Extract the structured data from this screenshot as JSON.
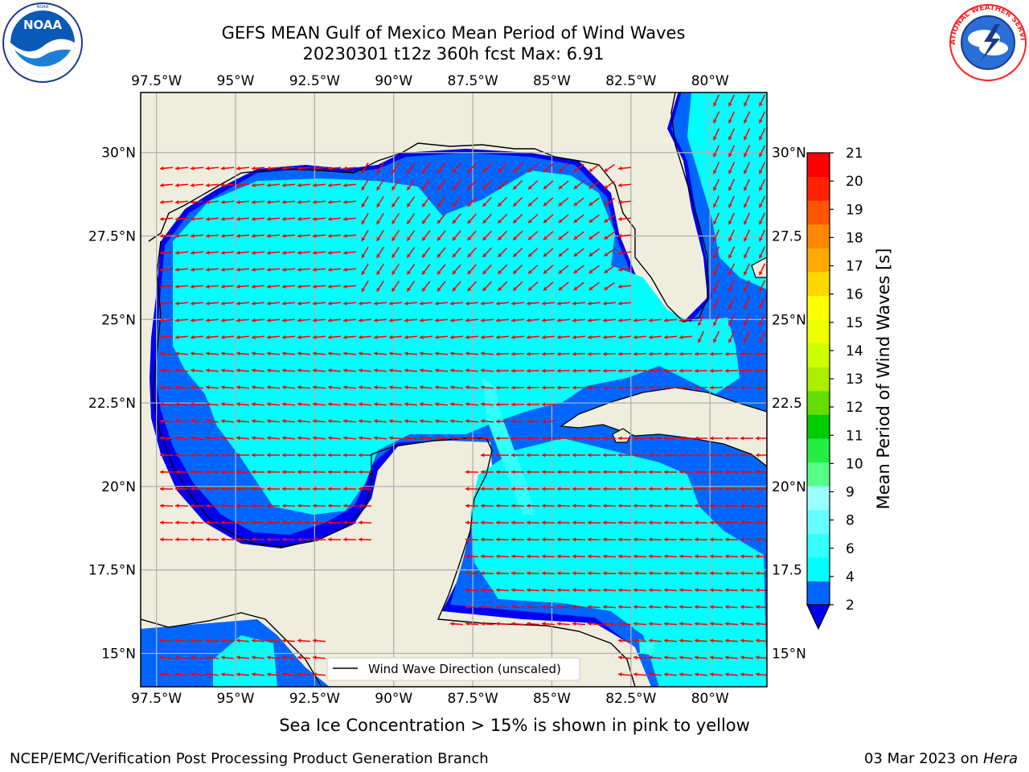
{
  "header": {
    "title_line1": "GEFS MEAN Gulf of Mexico Mean Period of Wind Waves",
    "title_line2": "20230301 t12z 360h fcst   Max: 6.91"
  },
  "logos": {
    "left": {
      "name": "noaa-logo",
      "text": "NOAA",
      "ring_text": "NATIONAL OCEANIC AND ATMOSPHERIC ADMINISTRATION · U.S. DEPARTMENT OF COMMERCE"
    },
    "right": {
      "name": "nws-logo",
      "ring_text": "NATIONAL WEATHER SERVICE"
    }
  },
  "map": {
    "lon_range": [
      -98.0,
      -78.2
    ],
    "lat_range": [
      14.0,
      31.8
    ],
    "lon_ticks": [
      "97.5°W",
      "95°W",
      "92.5°W",
      "90°W",
      "87.5°W",
      "85°W",
      "82.5°W",
      "80°W"
    ],
    "lon_values": [
      -97.5,
      -95,
      -92.5,
      -90,
      -87.5,
      -85,
      -82.5,
      -80
    ],
    "lat_ticks": [
      "30°N",
      "27.5°N",
      "25°N",
      "22.5°N",
      "20°N",
      "17.5°N",
      "15°N"
    ],
    "lat_values": [
      30,
      27.5,
      25,
      22.5,
      20,
      17.5,
      15
    ],
    "right_lat_ticks": [
      "30°N",
      "27.5",
      "25°N",
      "22.5",
      "20°N",
      "17.5",
      "15°N"
    ],
    "land_color": "#efedde",
    "grid_color": "#b0b0b0",
    "arrow_color": "#ff0000",
    "legend_label": "Wind Wave Direction (unscaled)"
  },
  "colorbar": {
    "label": "Mean Period of Wind Waves [s]",
    "ticks": [
      "2",
      "4",
      "6",
      "8",
      "9",
      "10",
      "11",
      "12",
      "13",
      "14",
      "15",
      "16",
      "17",
      "18",
      "19",
      "20",
      "21"
    ],
    "colors": [
      "#0066ff",
      "#00ffff",
      "#33ffff",
      "#66ffff",
      "#99ffff",
      "#55ff88",
      "#22ee44",
      "#00cc00",
      "#66dd00",
      "#aaee00",
      "#ccff00",
      "#eeff00",
      "#ffff00",
      "#ffd700",
      "#ffaa00",
      "#ff8800",
      "#ff5500",
      "#ff2200",
      "#ff0000"
    ],
    "under_color": "#0000ee"
  },
  "notes": {
    "sea_ice": "Sea Ice Concentration > 15% is shown in pink to yellow"
  },
  "footer": {
    "left": "NCEP/EMC/Verification Post Processing Product Generation Branch",
    "right_prefix": "03 Mar 2023 on ",
    "right_machine": "Hera"
  }
}
